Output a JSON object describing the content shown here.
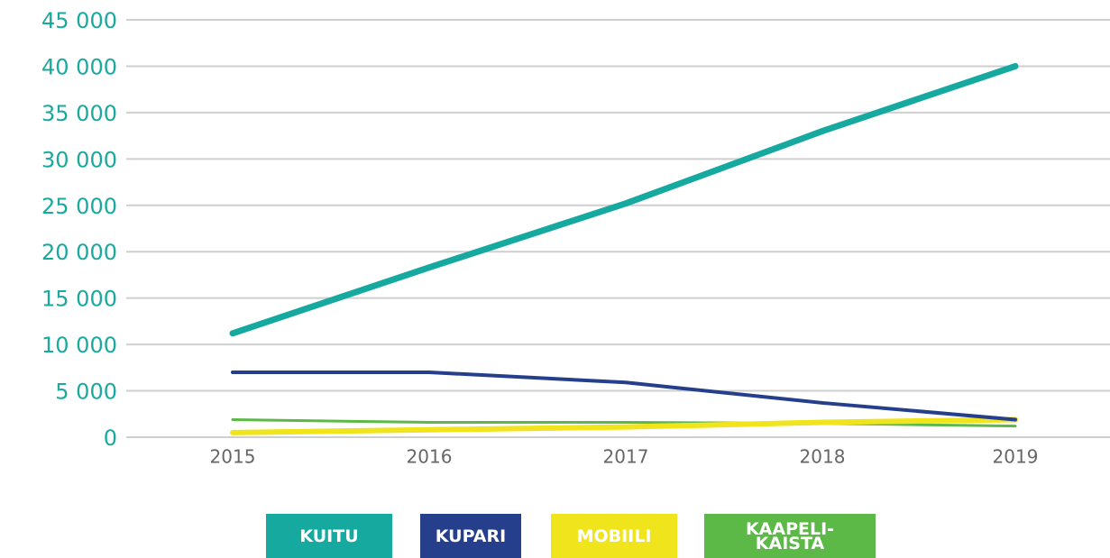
{
  "chart_data": {
    "type": "line",
    "categories": [
      "2015",
      "2016",
      "2017",
      "2018",
      "2019"
    ],
    "series": [
      {
        "name": "KUITU",
        "color": "#16a99f",
        "width": 7,
        "values": [
          11200,
          18300,
          25200,
          33000,
          40000
        ]
      },
      {
        "name": "KUPARI",
        "color": "#263f8c",
        "width": 4,
        "values": [
          7000,
          7000,
          5900,
          3700,
          1900
        ]
      },
      {
        "name": "MOBIILI",
        "color": "#f0e41c",
        "width": 6,
        "values": [
          500,
          800,
          1100,
          1600,
          1900
        ]
      },
      {
        "name": "KAAPELI-\nKAISTA",
        "color": "#5cb947",
        "width": 3,
        "values": [
          1900,
          1600,
          1600,
          1500,
          1200
        ]
      }
    ],
    "ylim": [
      0,
      45000
    ],
    "yticks": [
      0,
      {
        "value": 5000,
        "label": "5 000"
      },
      {
        "value": 10000,
        "label": "10 000"
      },
      {
        "value": 15000,
        "label": "15 000"
      },
      {
        "value": 20000,
        "label": "20 000"
      },
      {
        "value": 25000,
        "label": "25 000"
      },
      {
        "value": 30000,
        "label": "30 000"
      },
      {
        "value": 35000,
        "label": "35 000"
      },
      {
        "value": 40000,
        "label": "40 000"
      },
      {
        "value": 45000,
        "label": "45 000"
      }
    ],
    "grid": true
  }
}
